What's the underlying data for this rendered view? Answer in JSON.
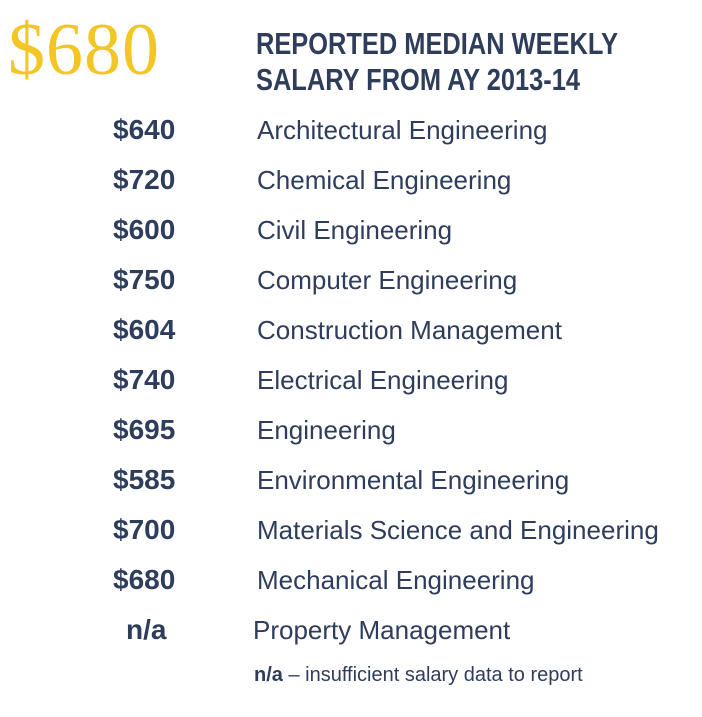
{
  "header": {
    "amount": "$680",
    "title_line1": "REPORTED MEDIAN WEEKLY",
    "title_line2": "SALARY FROM AY 2013-14"
  },
  "rows": [
    {
      "amount": "$640",
      "program": "Architectural Engineering"
    },
    {
      "amount": "$720",
      "program": "Chemical Engineering"
    },
    {
      "amount": "$600",
      "program": "Civil Engineering"
    },
    {
      "amount": "$750",
      "program": "Computer Engineering"
    },
    {
      "amount": "$604",
      "program": "Construction Management"
    },
    {
      "amount": "$740",
      "program": "Electrical Engineering"
    },
    {
      "amount": "$695",
      "program": "Engineering"
    },
    {
      "amount": "$585",
      "program": "Environmental Engineering"
    },
    {
      "amount": "$700",
      "program": "Materials Science and Engineering"
    },
    {
      "amount": "$680",
      "program": "Mechanical Engineering"
    },
    {
      "amount": "n/a",
      "program": "Property Management"
    }
  ],
  "footnote": {
    "key": "n/a",
    "text": " – insufficient salary data to report"
  },
  "colors": {
    "accent": "#f3c623",
    "text": "#2f3d5c"
  }
}
